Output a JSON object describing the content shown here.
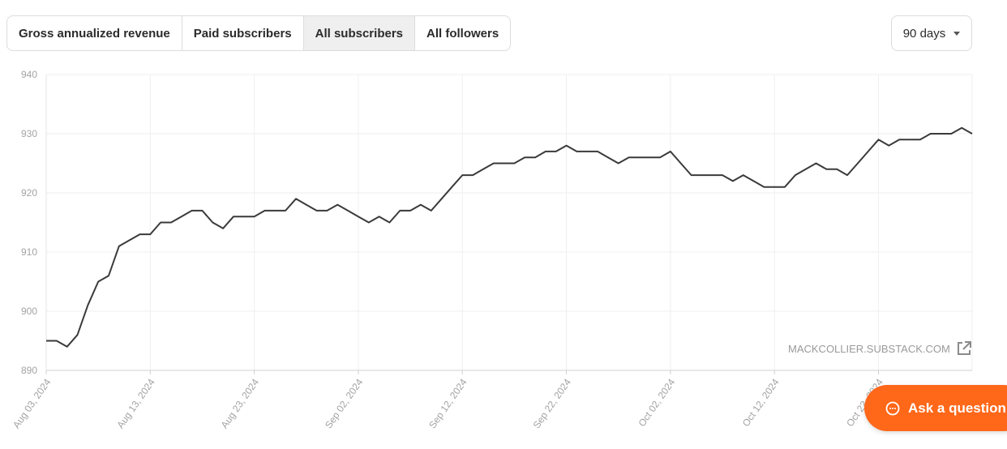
{
  "tabs": [
    {
      "label": "Gross annualized revenue",
      "active": false
    },
    {
      "label": "Paid subscribers",
      "active": false
    },
    {
      "label": "All subscribers",
      "active": true
    },
    {
      "label": "All followers",
      "active": false
    }
  ],
  "range": {
    "label": "90 days"
  },
  "watermark": {
    "text": "MACKCOLLIER.SUBSTACK.COM",
    "icon": "external-link-icon"
  },
  "ask_button": {
    "label": "Ask a question",
    "icon": "chat-bubble-icon",
    "color": "#ff6719"
  },
  "chart_data": {
    "type": "line",
    "y_ticks": [
      940,
      930,
      920,
      910,
      900,
      890
    ],
    "ylim": [
      890,
      940
    ],
    "x_tick_labels": [
      "Aug 03, 2024",
      "Aug 13, 2024",
      "Aug 23, 2024",
      "Sep 02, 2024",
      "Sep 12, 2024",
      "Sep 22, 2024",
      "Oct 02, 2024",
      "Oct 12, 2024",
      "Oct 22, 2024"
    ],
    "start_date": "2024-08-03",
    "grid": true,
    "line_color": "#3a3a3a",
    "series": [
      {
        "values": [
          895,
          895,
          894,
          896,
          901,
          905,
          906,
          911,
          912,
          913,
          913,
          915,
          915,
          916,
          917,
          917,
          915,
          914,
          916,
          916,
          916,
          917,
          917,
          917,
          919,
          918,
          917,
          917,
          918,
          917,
          916,
          915,
          916,
          915,
          917,
          917,
          918,
          917,
          919,
          921,
          923,
          923,
          924,
          925,
          925,
          925,
          926,
          926,
          927,
          927,
          928,
          927,
          927,
          927,
          926,
          925,
          926,
          926,
          926,
          926,
          927,
          925,
          923,
          923,
          923,
          923,
          922,
          923,
          922,
          921,
          921,
          921,
          923,
          924,
          925,
          924,
          924,
          923,
          925,
          927,
          929,
          928,
          929,
          929,
          929,
          930,
          930,
          930,
          931,
          930
        ]
      }
    ]
  }
}
